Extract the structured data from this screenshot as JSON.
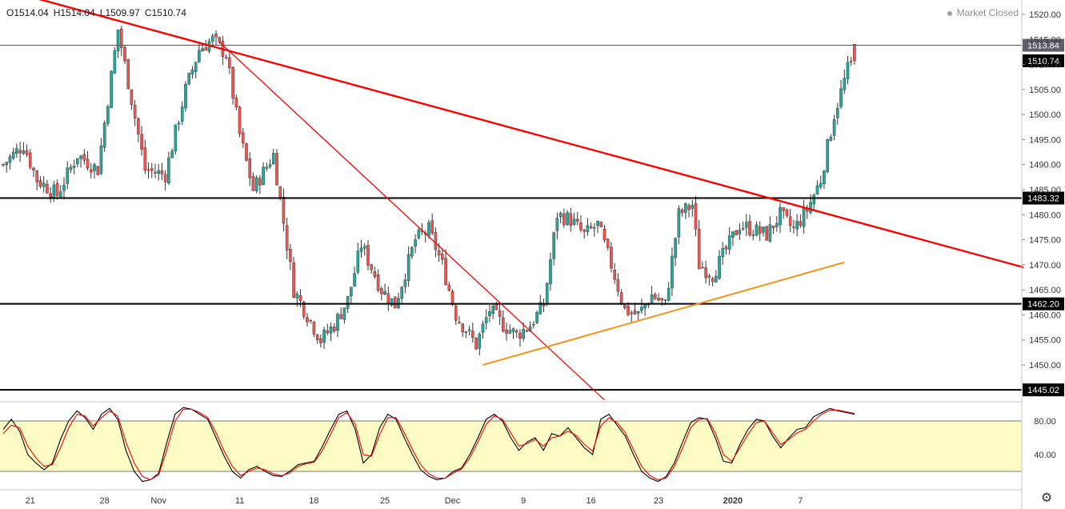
{
  "header": {
    "open": "O1514.04",
    "high": "H1514.04",
    "low": "L1509.97",
    "close": "C1510.74",
    "market_status": "Market Closed"
  },
  "colors": {
    "bull": "#26a69a",
    "bear": "#ef5350",
    "candle_wick": "#333333",
    "trendline": "#ff0000",
    "support_line": "#f7931a",
    "stoch_k": "#000000",
    "stoch_d": "#ff0000",
    "stoch_band": "#fdfcc5"
  },
  "chart_data": [
    {
      "type": "candlestick",
      "title": "",
      "y_axis_ticks": [
        "1520.00",
        "1515.00",
        "1510.00",
        "1505.00",
        "1500.00",
        "1495.00",
        "1490.00",
        "1485.00",
        "1480.00",
        "1475.00",
        "1470.00",
        "1465.00",
        "1460.00",
        "1455.00",
        "1450.00"
      ],
      "ylim": [
        1443,
        1523
      ],
      "x_axis_ticks": [
        "21",
        "28",
        "Nov",
        "11",
        "18",
        "25",
        "Dec",
        "9",
        "16",
        "23",
        "2020",
        "7"
      ],
      "horizontal_levels": [
        {
          "value": 1513.84,
          "label": "1513.84",
          "style": "thin"
        },
        {
          "value": 1483.32,
          "label": "1483.32",
          "style": "bold"
        },
        {
          "value": 1462.2,
          "label": "1462.20",
          "style": "bold"
        },
        {
          "value": 1445.02,
          "label": "1445.02",
          "style": "bold"
        }
      ],
      "last_price": {
        "value": 1510.74,
        "label": "1510.74"
      },
      "trendlines": [
        {
          "name": "",
          "from": {
            "bar": 0,
            "price": 1525
          },
          "to": {
            "bar": 302,
            "price": 1469.5
          },
          "color": "red",
          "width": "thick"
        },
        {
          "name": "",
          "from": {
            "bar": 64,
            "price": 1514.5
          },
          "to": {
            "bar": 178,
            "price": 1443
          },
          "color": "red",
          "width": "thin"
        },
        {
          "name": "",
          "from": {
            "bar": 142,
            "price": 1450
          },
          "to": {
            "bar": 249,
            "price": 1470.5
          },
          "color": "orange",
          "width": "medium"
        }
      ],
      "price_path": [
        [
          0,
          1490
        ],
        [
          6,
          1494
        ],
        [
          10,
          1487
        ],
        [
          16,
          1484
        ],
        [
          22,
          1492
        ],
        [
          28,
          1489
        ],
        [
          34,
          1517
        ],
        [
          38,
          1503
        ],
        [
          42,
          1489
        ],
        [
          48,
          1488
        ],
        [
          54,
          1505
        ],
        [
          58,
          1513
        ],
        [
          62,
          1515
        ],
        [
          66,
          1512
        ],
        [
          70,
          1496
        ],
        [
          74,
          1485
        ],
        [
          80,
          1492
        ],
        [
          86,
          1465
        ],
        [
          90,
          1460
        ],
        [
          94,
          1455
        ],
        [
          98,
          1458
        ],
        [
          102,
          1463
        ],
        [
          106,
          1474
        ],
        [
          112,
          1465
        ],
        [
          116,
          1462
        ],
        [
          122,
          1475
        ],
        [
          126,
          1477
        ],
        [
          130,
          1470
        ],
        [
          134,
          1460
        ],
        [
          140,
          1454
        ],
        [
          144,
          1461
        ],
        [
          148,
          1458
        ],
        [
          152,
          1456
        ],
        [
          156,
          1458
        ],
        [
          160,
          1462
        ],
        [
          164,
          1480
        ],
        [
          168,
          1479
        ],
        [
          172,
          1476
        ],
        [
          176,
          1478
        ],
        [
          180,
          1470
        ],
        [
          184,
          1461
        ],
        [
          188,
          1460
        ],
        [
          192,
          1464
        ],
        [
          196,
          1462
        ],
        [
          200,
          1480
        ],
        [
          204,
          1482
        ],
        [
          206,
          1470
        ],
        [
          210,
          1468
        ],
        [
          214,
          1473
        ],
        [
          218,
          1478
        ],
        [
          222,
          1477
        ],
        [
          226,
          1476
        ],
        [
          230,
          1480
        ],
        [
          234,
          1477
        ],
        [
          238,
          1481
        ],
        [
          242,
          1487
        ],
        [
          246,
          1500
        ],
        [
          250,
          1509
        ],
        [
          252,
          1511
        ]
      ],
      "candle_count": 253
    },
    {
      "type": "line",
      "title": "",
      "indicator": "stochastic",
      "y_axis_ticks": [
        "80.00",
        "40.00"
      ],
      "ylim": [
        0,
        100
      ],
      "band": [
        20,
        80
      ],
      "series": [
        {
          "name": "",
          "values": [
            70,
            82,
            68,
            40,
            30,
            22,
            30,
            58,
            80,
            92,
            84,
            70,
            88,
            95,
            82,
            45,
            20,
            8,
            10,
            18,
            55,
            88,
            96,
            94,
            88,
            82,
            60,
            38,
            20,
            12,
            22,
            26,
            20,
            15,
            14,
            20,
            28,
            30,
            32,
            50,
            70,
            88,
            92,
            70,
            30,
            40,
            72,
            88,
            82,
            60,
            40,
            22,
            14,
            10,
            12,
            20,
            24,
            40,
            60,
            82,
            88,
            80,
            60,
            45,
            55,
            60,
            45,
            65,
            62,
            72,
            60,
            48,
            40,
            82,
            88,
            75,
            62,
            40,
            20,
            12,
            8,
            14,
            30,
            55,
            78,
            84,
            82,
            60,
            32,
            30,
            52,
            70,
            82,
            80,
            62,
            48,
            60,
            70,
            72,
            85,
            90,
            95,
            92,
            90,
            88
          ]
        },
        {
          "name": "",
          "values": [
            65,
            75,
            72,
            50,
            36,
            26,
            28,
            48,
            72,
            88,
            86,
            74,
            84,
            92,
            86,
            55,
            30,
            14,
            10,
            16,
            46,
            80,
            94,
            94,
            90,
            84,
            66,
            44,
            26,
            15,
            20,
            24,
            22,
            17,
            15,
            18,
            26,
            29,
            31,
            45,
            64,
            84,
            90,
            76,
            40,
            38,
            64,
            84,
            84,
            66,
            46,
            28,
            17,
            12,
            12,
            18,
            23,
            36,
            55,
            76,
            86,
            82,
            66,
            50,
            53,
            58,
            50,
            60,
            62,
            68,
            63,
            52,
            44,
            74,
            84,
            78,
            66,
            46,
            26,
            15,
            10,
            12,
            26,
            48,
            72,
            82,
            83,
            66,
            40,
            32,
            48,
            64,
            78,
            80,
            66,
            52,
            58,
            66,
            70,
            80,
            88,
            93,
            93,
            91,
            89
          ]
        }
      ]
    }
  ]
}
